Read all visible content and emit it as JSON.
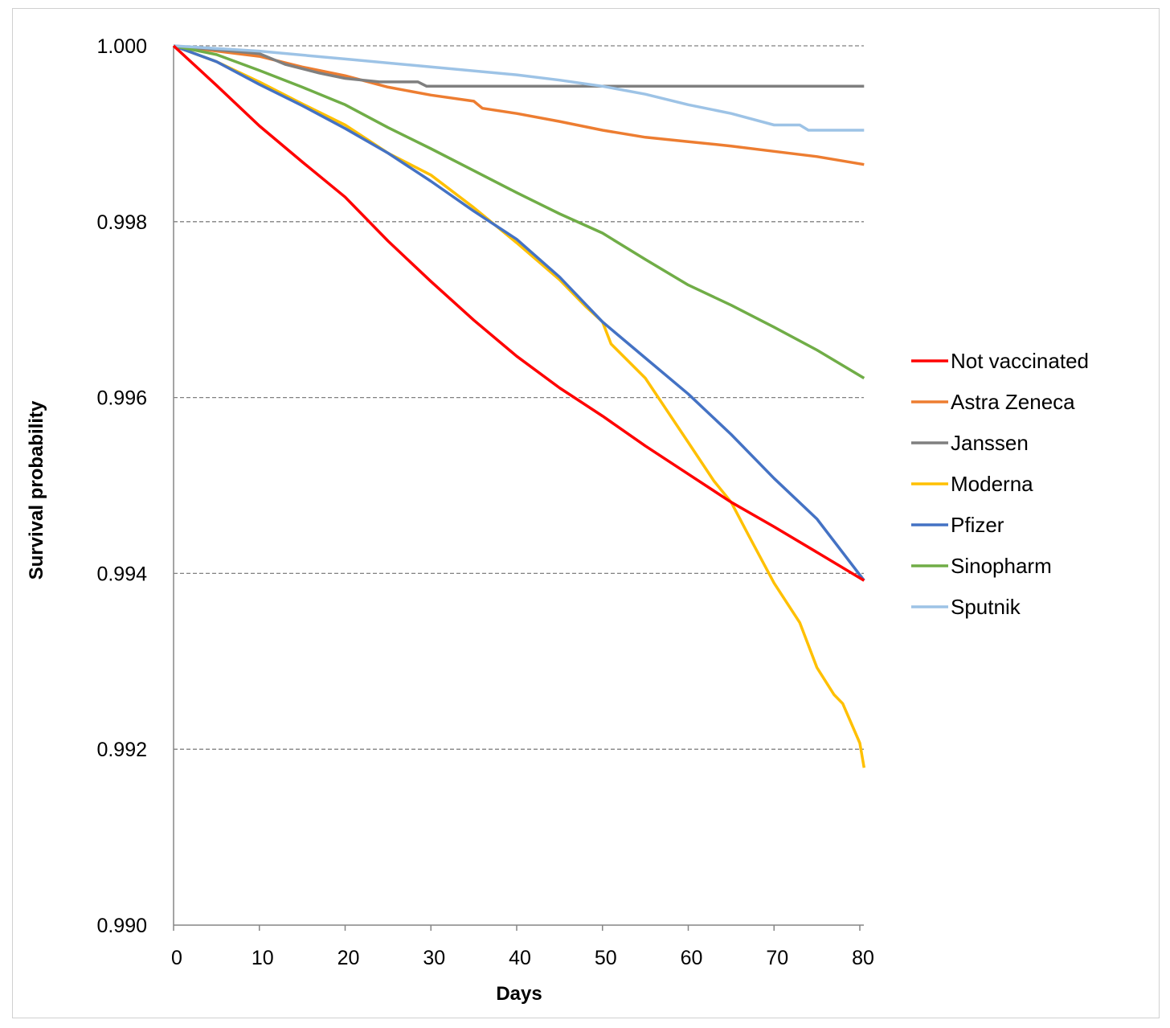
{
  "chart_data": {
    "type": "line",
    "title": "",
    "xlabel": "Days",
    "ylabel": "Survival probability",
    "xlim": [
      0,
      80
    ],
    "ylim": [
      0.99,
      1.0
    ],
    "xticks": [
      "0",
      "10",
      "20",
      "30",
      "40",
      "50",
      "60",
      "70",
      "80"
    ],
    "yticks": [
      "0.990",
      "0.992",
      "0.994",
      "0.996",
      "0.998",
      "1.000"
    ],
    "grid": "horizontal dashed",
    "legend": "right",
    "series": [
      {
        "name": "Not vaccinated",
        "color": "#ff0000",
        "x": [
          0,
          5,
          10,
          15,
          20,
          25,
          30,
          35,
          40,
          45,
          50,
          55,
          60,
          65,
          70,
          75,
          80.5
        ],
        "y": [
          1.0,
          0.99955,
          0.99909,
          0.99868,
          0.99828,
          0.99778,
          0.99732,
          0.99688,
          0.99647,
          0.99611,
          0.99579,
          0.99545,
          0.99513,
          0.99481,
          0.99453,
          0.99424,
          0.99392
        ]
      },
      {
        "name": "Astra Zeneca",
        "color": "#ed7d31",
        "x": [
          0,
          10,
          15,
          20,
          25,
          30,
          35,
          36,
          40,
          45,
          50,
          55,
          60,
          65,
          70,
          75,
          80.5
        ],
        "y": [
          1.0,
          0.99988,
          0.99976,
          0.99966,
          0.99953,
          0.99944,
          0.99937,
          0.99929,
          0.99923,
          0.99914,
          0.99904,
          0.99896,
          0.99891,
          0.99886,
          0.9988,
          0.99874,
          0.99865
        ]
      },
      {
        "name": "Janssen",
        "color": "#7f7f7f",
        "x": [
          0,
          8,
          10,
          13,
          17,
          20,
          24,
          28.5,
          29.5,
          80.5
        ],
        "y": [
          1.0,
          0.99993,
          0.99991,
          0.99979,
          0.99969,
          0.99963,
          0.99959,
          0.99959,
          0.99954,
          0.99954
        ]
      },
      {
        "name": "Moderna",
        "color": "#ffc000",
        "x": [
          0,
          5,
          10,
          15,
          20,
          25,
          30,
          35,
          40,
          45,
          48,
          50,
          51,
          55,
          60,
          63,
          65,
          67,
          70,
          73,
          75,
          77,
          78,
          80,
          80.5
        ],
        "y": [
          1.0,
          0.99982,
          0.99959,
          0.99934,
          0.9991,
          0.99878,
          0.99853,
          0.99816,
          0.99776,
          0.99734,
          0.99704,
          0.99686,
          0.99661,
          0.99622,
          0.99549,
          0.99505,
          0.99481,
          0.99444,
          0.99389,
          0.99344,
          0.99293,
          0.99262,
          0.99252,
          0.99207,
          0.99179
        ]
      },
      {
        "name": "Pfizer",
        "color": "#4472c4",
        "x": [
          0,
          5,
          10,
          15,
          20,
          25,
          30,
          35,
          40,
          45,
          50,
          55,
          60,
          65,
          70,
          75,
          80.5
        ],
        "y": [
          1.0,
          0.99982,
          0.99956,
          0.99932,
          0.99906,
          0.99878,
          0.99846,
          0.99812,
          0.9978,
          0.99737,
          0.99686,
          0.99645,
          0.99604,
          0.99558,
          0.99508,
          0.99462,
          0.99392
        ]
      },
      {
        "name": "Sinopharm",
        "color": "#70ad47",
        "x": [
          0,
          5,
          10,
          15,
          20,
          25,
          30,
          35,
          40,
          45,
          50,
          55,
          60,
          65,
          70,
          75,
          80.5
        ],
        "y": [
          1.0,
          0.9999,
          0.99972,
          0.99953,
          0.99933,
          0.99907,
          0.99883,
          0.99858,
          0.99833,
          0.99809,
          0.99787,
          0.99757,
          0.99728,
          0.99705,
          0.9968,
          0.99654,
          0.99622
        ]
      },
      {
        "name": "Sputnik",
        "color": "#9dc3e6",
        "x": [
          0,
          10,
          20,
          30,
          40,
          45,
          50,
          55,
          60,
          65,
          70,
          73,
          74,
          80.5
        ],
        "y": [
          1.0,
          0.99994,
          0.99985,
          0.99976,
          0.99967,
          0.99961,
          0.99954,
          0.99945,
          0.99933,
          0.99923,
          0.9991,
          0.9991,
          0.99904,
          0.99904
        ]
      }
    ]
  }
}
